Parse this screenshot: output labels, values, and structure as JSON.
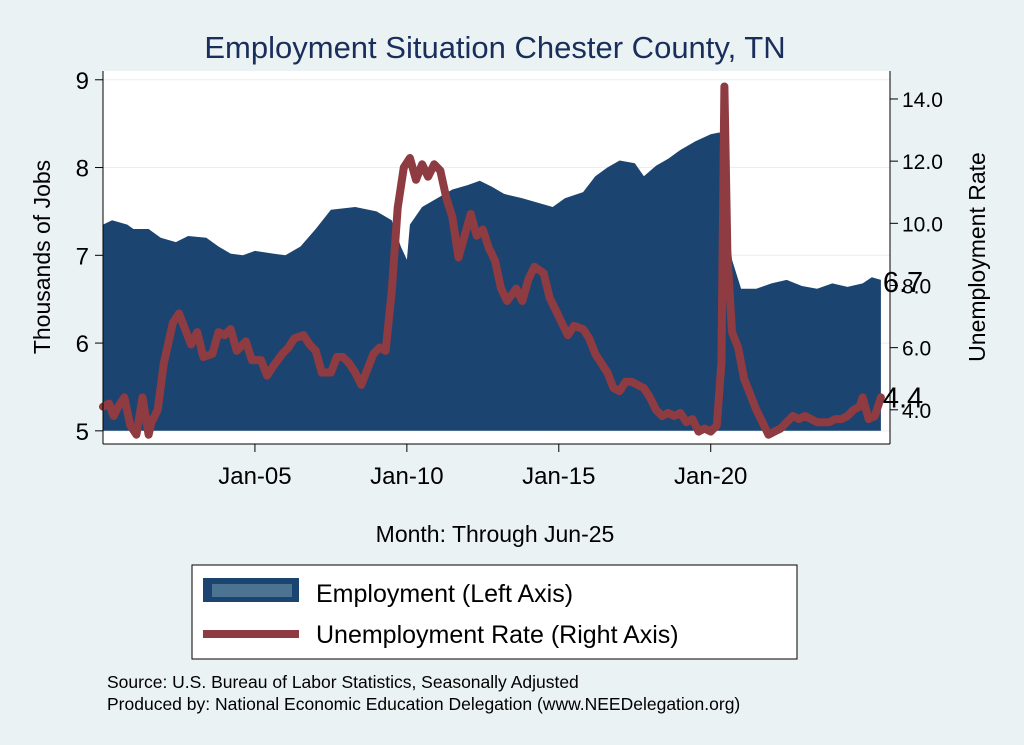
{
  "chart_data": {
    "type": "area+line",
    "title": "Employment Situation Chester  County, TN",
    "xlabel": "Month: Through Jun-25",
    "ylabel_left": "Thousands of Jobs",
    "ylabel_right": "Unemployment Rate",
    "x_ticks": [
      {
        "value": 2005.0,
        "label": "Jan-05"
      },
      {
        "value": 2010.0,
        "label": "Jan-10"
      },
      {
        "value": 2015.0,
        "label": "Jan-15"
      },
      {
        "value": 2020.0,
        "label": "Jan-20"
      }
    ],
    "xlim": [
      2000.0,
      2025.9
    ],
    "ylim_left": [
      4.85,
      9.1
    ],
    "ylim_right": [
      2.9,
      14.9
    ],
    "left_ticks": [
      5,
      6,
      7,
      8,
      9
    ],
    "right_ticks": [
      4.0,
      6.0,
      8.0,
      10.0,
      12.0,
      14.0
    ],
    "right_tick_labels": [
      "4.0",
      "6.0",
      "8.0",
      "10.0",
      "12.0",
      "14.0"
    ],
    "series": [
      {
        "name": "Employment (Left Axis)",
        "axis": "left",
        "kind": "area",
        "color": "#1b4470",
        "points": [
          [
            2000.0,
            7.35
          ],
          [
            2000.3,
            7.4
          ],
          [
            2000.8,
            7.35
          ],
          [
            2001.0,
            7.3
          ],
          [
            2001.5,
            7.3
          ],
          [
            2001.9,
            7.2
          ],
          [
            2002.4,
            7.15
          ],
          [
            2002.8,
            7.22
          ],
          [
            2003.4,
            7.2
          ],
          [
            2003.8,
            7.1
          ],
          [
            2004.2,
            7.02
          ],
          [
            2004.6,
            7.0
          ],
          [
            2005.0,
            7.05
          ],
          [
            2005.6,
            7.02
          ],
          [
            2006.0,
            7.0
          ],
          [
            2006.5,
            7.1
          ],
          [
            2007.0,
            7.3
          ],
          [
            2007.5,
            7.52
          ],
          [
            2008.3,
            7.55
          ],
          [
            2009.0,
            7.5
          ],
          [
            2009.5,
            7.4
          ],
          [
            2009.8,
            7.1
          ],
          [
            2010.0,
            6.95
          ],
          [
            2010.1,
            7.35
          ],
          [
            2010.5,
            7.55
          ],
          [
            2011.0,
            7.65
          ],
          [
            2011.5,
            7.75
          ],
          [
            2012.0,
            7.8
          ],
          [
            2012.4,
            7.85
          ],
          [
            2012.8,
            7.78
          ],
          [
            2013.2,
            7.7
          ],
          [
            2013.8,
            7.65
          ],
          [
            2014.3,
            7.6
          ],
          [
            2014.8,
            7.55
          ],
          [
            2015.2,
            7.65
          ],
          [
            2015.8,
            7.72
          ],
          [
            2016.2,
            7.9
          ],
          [
            2016.6,
            8.0
          ],
          [
            2017.0,
            8.08
          ],
          [
            2017.5,
            8.05
          ],
          [
            2017.8,
            7.9
          ],
          [
            2018.2,
            8.02
          ],
          [
            2018.6,
            8.1
          ],
          [
            2019.0,
            8.2
          ],
          [
            2019.5,
            8.3
          ],
          [
            2020.0,
            8.38
          ],
          [
            2020.3,
            8.4
          ],
          [
            2020.45,
            7.8
          ],
          [
            2020.7,
            6.95
          ],
          [
            2021.0,
            6.62
          ],
          [
            2021.5,
            6.62
          ],
          [
            2022.0,
            6.68
          ],
          [
            2022.5,
            6.72
          ],
          [
            2023.0,
            6.65
          ],
          [
            2023.5,
            6.62
          ],
          [
            2024.0,
            6.68
          ],
          [
            2024.5,
            6.64
          ],
          [
            2025.0,
            6.68
          ],
          [
            2025.3,
            6.75
          ],
          [
            2025.6,
            6.72
          ]
        ],
        "end_label": "6.7"
      },
      {
        "name": "Unemployment Rate (Right Axis)",
        "axis": "right",
        "kind": "line",
        "color": "#8e3b42",
        "points": [
          [
            2000.0,
            4.1
          ],
          [
            2000.2,
            4.2
          ],
          [
            2000.35,
            3.8
          ],
          [
            2000.5,
            4.1
          ],
          [
            2000.7,
            4.4
          ],
          [
            2000.9,
            3.5
          ],
          [
            2001.1,
            3.2
          ],
          [
            2001.3,
            4.4
          ],
          [
            2001.5,
            3.2
          ],
          [
            2001.6,
            3.6
          ],
          [
            2001.8,
            4.0
          ],
          [
            2002.0,
            5.5
          ],
          [
            2002.3,
            6.8
          ],
          [
            2002.5,
            7.1
          ],
          [
            2002.7,
            6.6
          ],
          [
            2002.9,
            6.1
          ],
          [
            2003.1,
            6.5
          ],
          [
            2003.3,
            5.7
          ],
          [
            2003.6,
            5.8
          ],
          [
            2003.8,
            6.5
          ],
          [
            2004.0,
            6.4
          ],
          [
            2004.2,
            6.6
          ],
          [
            2004.4,
            5.9
          ],
          [
            2004.7,
            6.2
          ],
          [
            2004.9,
            5.6
          ],
          [
            2005.2,
            5.6
          ],
          [
            2005.4,
            5.1
          ],
          [
            2005.6,
            5.4
          ],
          [
            2005.9,
            5.8
          ],
          [
            2006.1,
            6.0
          ],
          [
            2006.3,
            6.3
          ],
          [
            2006.6,
            6.4
          ],
          [
            2006.8,
            6.1
          ],
          [
            2007.0,
            5.9
          ],
          [
            2007.2,
            5.2
          ],
          [
            2007.5,
            5.2
          ],
          [
            2007.7,
            5.7
          ],
          [
            2007.9,
            5.7
          ],
          [
            2008.1,
            5.5
          ],
          [
            2008.3,
            5.2
          ],
          [
            2008.5,
            4.8
          ],
          [
            2008.7,
            5.3
          ],
          [
            2008.9,
            5.8
          ],
          [
            2009.1,
            6.0
          ],
          [
            2009.3,
            5.9
          ],
          [
            2009.5,
            7.8
          ],
          [
            2009.7,
            10.5
          ],
          [
            2009.9,
            11.8
          ],
          [
            2010.1,
            12.1
          ],
          [
            2010.3,
            11.4
          ],
          [
            2010.5,
            11.9
          ],
          [
            2010.7,
            11.5
          ],
          [
            2010.9,
            11.9
          ],
          [
            2011.1,
            11.7
          ],
          [
            2011.3,
            10.8
          ],
          [
            2011.5,
            10.2
          ],
          [
            2011.7,
            8.9
          ],
          [
            2011.9,
            9.6
          ],
          [
            2012.1,
            10.3
          ],
          [
            2012.3,
            9.6
          ],
          [
            2012.5,
            9.8
          ],
          [
            2012.7,
            9.2
          ],
          [
            2012.9,
            8.8
          ],
          [
            2013.1,
            7.9
          ],
          [
            2013.3,
            7.5
          ],
          [
            2013.6,
            7.9
          ],
          [
            2013.8,
            7.5
          ],
          [
            2014.0,
            8.2
          ],
          [
            2014.2,
            8.6
          ],
          [
            2014.5,
            8.4
          ],
          [
            2014.7,
            7.6
          ],
          [
            2014.9,
            7.2
          ],
          [
            2015.1,
            6.8
          ],
          [
            2015.3,
            6.4
          ],
          [
            2015.5,
            6.7
          ],
          [
            2015.8,
            6.6
          ],
          [
            2016.0,
            6.3
          ],
          [
            2016.2,
            5.8
          ],
          [
            2016.4,
            5.5
          ],
          [
            2016.6,
            5.2
          ],
          [
            2016.8,
            4.7
          ],
          [
            2017.0,
            4.6
          ],
          [
            2017.2,
            4.9
          ],
          [
            2017.4,
            4.9
          ],
          [
            2017.6,
            4.8
          ],
          [
            2017.8,
            4.7
          ],
          [
            2018.0,
            4.4
          ],
          [
            2018.2,
            4.0
          ],
          [
            2018.4,
            3.8
          ],
          [
            2018.6,
            3.9
          ],
          [
            2018.8,
            3.8
          ],
          [
            2019.0,
            3.9
          ],
          [
            2019.2,
            3.6
          ],
          [
            2019.4,
            3.7
          ],
          [
            2019.6,
            3.3
          ],
          [
            2019.8,
            3.4
          ],
          [
            2020.0,
            3.3
          ],
          [
            2020.2,
            3.5
          ],
          [
            2020.35,
            5.5
          ],
          [
            2020.45,
            14.4
          ],
          [
            2020.55,
            9.0
          ],
          [
            2020.7,
            6.5
          ],
          [
            2020.9,
            6.0
          ],
          [
            2021.1,
            5.0
          ],
          [
            2021.3,
            4.5
          ],
          [
            2021.5,
            4.0
          ],
          [
            2021.7,
            3.6
          ],
          [
            2021.9,
            3.2
          ],
          [
            2022.1,
            3.3
          ],
          [
            2022.3,
            3.4
          ],
          [
            2022.5,
            3.6
          ],
          [
            2022.7,
            3.8
          ],
          [
            2022.9,
            3.7
          ],
          [
            2023.1,
            3.8
          ],
          [
            2023.3,
            3.7
          ],
          [
            2023.5,
            3.6
          ],
          [
            2023.7,
            3.6
          ],
          [
            2023.9,
            3.6
          ],
          [
            2024.1,
            3.7
          ],
          [
            2024.3,
            3.7
          ],
          [
            2024.5,
            3.8
          ],
          [
            2024.7,
            4.0
          ],
          [
            2024.9,
            4.1
          ],
          [
            2025.0,
            4.4
          ],
          [
            2025.2,
            3.7
          ],
          [
            2025.4,
            3.8
          ],
          [
            2025.6,
            4.4
          ]
        ],
        "end_label": "4.4"
      }
    ],
    "legend": [
      {
        "label": "Employment (Left Axis)",
        "kind": "area"
      },
      {
        "label": "Unemployment Rate (Right Axis)",
        "kind": "line"
      }
    ],
    "colors": {
      "page_bg": "#eaf2f3",
      "plot_bg": "#ffffff",
      "area": "#1b4470",
      "area_legend": "#4d7393",
      "line": "#8e3b42",
      "title": "#1a2e5c",
      "grid": "#e8eef2"
    }
  },
  "footer": {
    "source": "Source: U.S. Bureau of Labor Statistics, Seasonally Adjusted",
    "produced": "Produced by: National Economic Education Delegation (www.NEEDelegation.org)"
  }
}
